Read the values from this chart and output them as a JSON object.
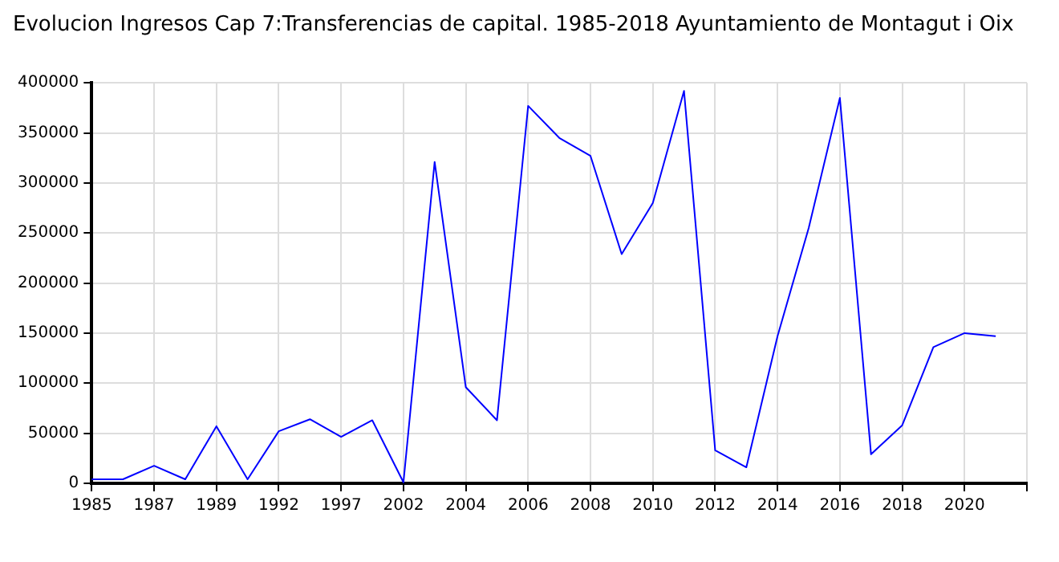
{
  "chart_data": {
    "type": "line",
    "title": "Evolucion Ingresos Cap 7:Transferencias de capital. 1985-2018 Ayuntamiento de Montagut i Oix",
    "categories": [
      "1985",
      null,
      "1987",
      null,
      "1989",
      null,
      "1992",
      null,
      "1997",
      null,
      "2002",
      null,
      "2004",
      null,
      "2006",
      null,
      "2008",
      null,
      "2010",
      null,
      "2012",
      null,
      "2014",
      null,
      "2016",
      null,
      "2018",
      null,
      "2020",
      null,
      null
    ],
    "series": [
      {
        "color": "#0000ff",
        "values": [
          4000,
          4000,
          17500,
          4000,
          57000,
          4000,
          52000,
          64000,
          46500,
          63000,
          1000,
          321000,
          96000,
          63000,
          377000,
          345000,
          327000,
          229000,
          280000,
          392000,
          33000,
          16000,
          147000,
          255000,
          385000,
          29000,
          58000,
          136000,
          150000,
          147000,
          null
        ]
      }
    ],
    "ylim": [
      0,
      400000
    ],
    "yticks": [
      0,
      50000,
      100000,
      150000,
      200000,
      250000,
      300000,
      350000,
      400000
    ],
    "grid": true,
    "marker": "none",
    "line_style": "solid"
  }
}
